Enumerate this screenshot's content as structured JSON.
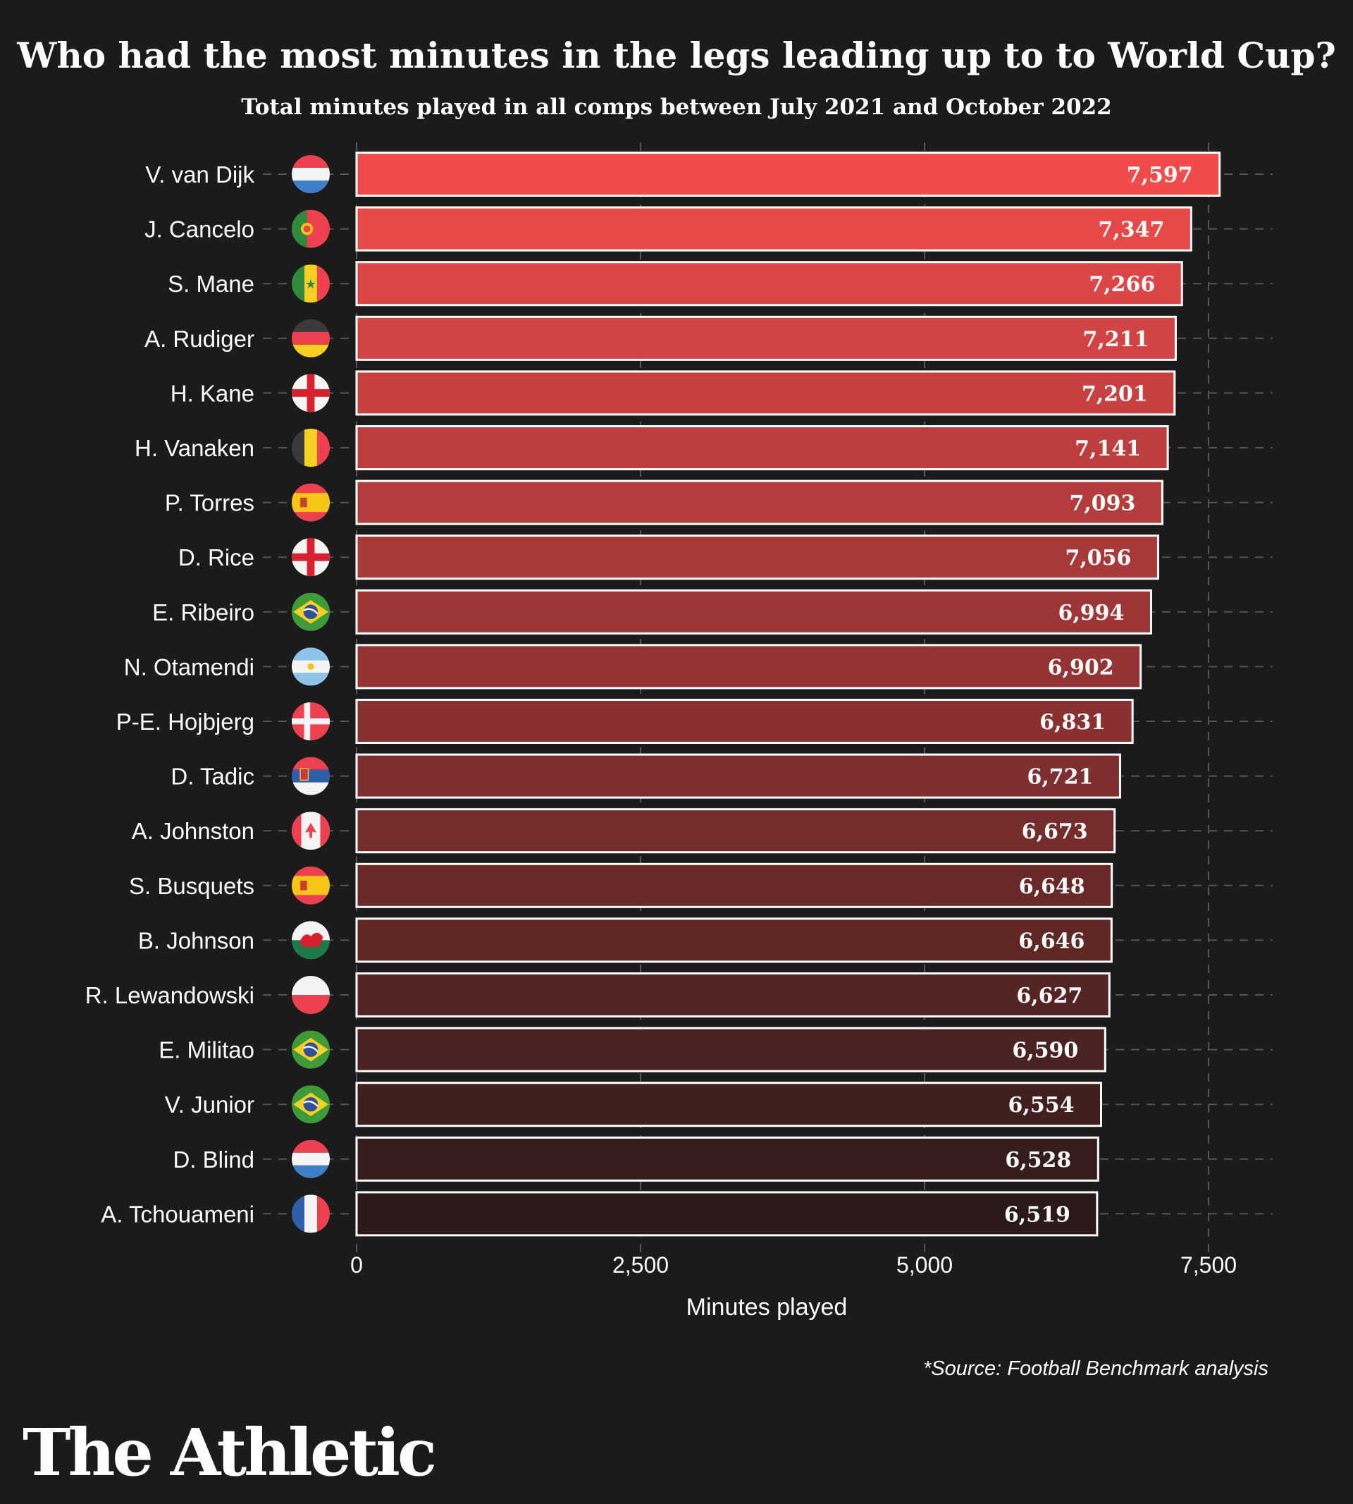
{
  "chart_data": {
    "type": "bar",
    "orientation": "horizontal",
    "title": "Who had the most minutes in the legs leading up to to World Cup?",
    "subtitle": "Total minutes played in all comps between July 2021 and October 2022",
    "xlabel": "Minutes played",
    "ylabel": "",
    "xlim": [
      0,
      8000
    ],
    "x_ticks": [
      0,
      2500,
      5000,
      7500
    ],
    "x_tick_labels": [
      "0",
      "2,500",
      "5,000",
      "7,500"
    ],
    "grid": true,
    "categories": [
      "V. van Dijk",
      "J. Cancelo",
      "S. Mane",
      "A. Rudiger",
      "H. Kane",
      "H. Vanaken",
      "P. Torres",
      "D. Rice",
      "E. Ribeiro",
      "N. Otamendi",
      "P-E. Hojbjerg",
      "D. Tadic",
      "A. Johnston",
      "S. Busquets",
      "B. Johnson",
      "R. Lewandowski",
      "E. Militao",
      "V. Junior",
      "D. Blind",
      "A. Tchouameni"
    ],
    "values": [
      7597,
      7347,
      7266,
      7211,
      7201,
      7141,
      7093,
      7056,
      6994,
      6902,
      6831,
      6721,
      6673,
      6648,
      6646,
      6627,
      6590,
      6554,
      6528,
      6519
    ],
    "value_labels": [
      "7,597",
      "7,347",
      "7,266",
      "7,211",
      "7,201",
      "7,141",
      "7,093",
      "7,056",
      "6,994",
      "6,902",
      "6,831",
      "6,721",
      "6,673",
      "6,648",
      "6,646",
      "6,627",
      "6,590",
      "6,554",
      "6,528",
      "6,519"
    ],
    "flags": [
      "netherlands-flag-icon",
      "portugal-flag-icon",
      "senegal-flag-icon",
      "germany-flag-icon",
      "england-flag-icon",
      "belgium-flag-icon",
      "spain-flag-icon",
      "england-flag-icon",
      "brazil-flag-icon",
      "argentina-flag-icon",
      "denmark-flag-icon",
      "serbia-flag-icon",
      "canada-flag-icon",
      "spain-flag-icon",
      "wales-flag-icon",
      "poland-flag-icon",
      "brazil-flag-icon",
      "brazil-flag-icon",
      "netherlands-flag-icon",
      "france-flag-icon"
    ],
    "bar_color_top": "#f14b4b",
    "bar_color_bottom": "#2c1a1a",
    "bar_outline_color": "#ffffff",
    "background_color": "#1b1b1b"
  },
  "footer": {
    "source": "*Source: Football Benchmark analysis",
    "brand": "The Athletic"
  }
}
